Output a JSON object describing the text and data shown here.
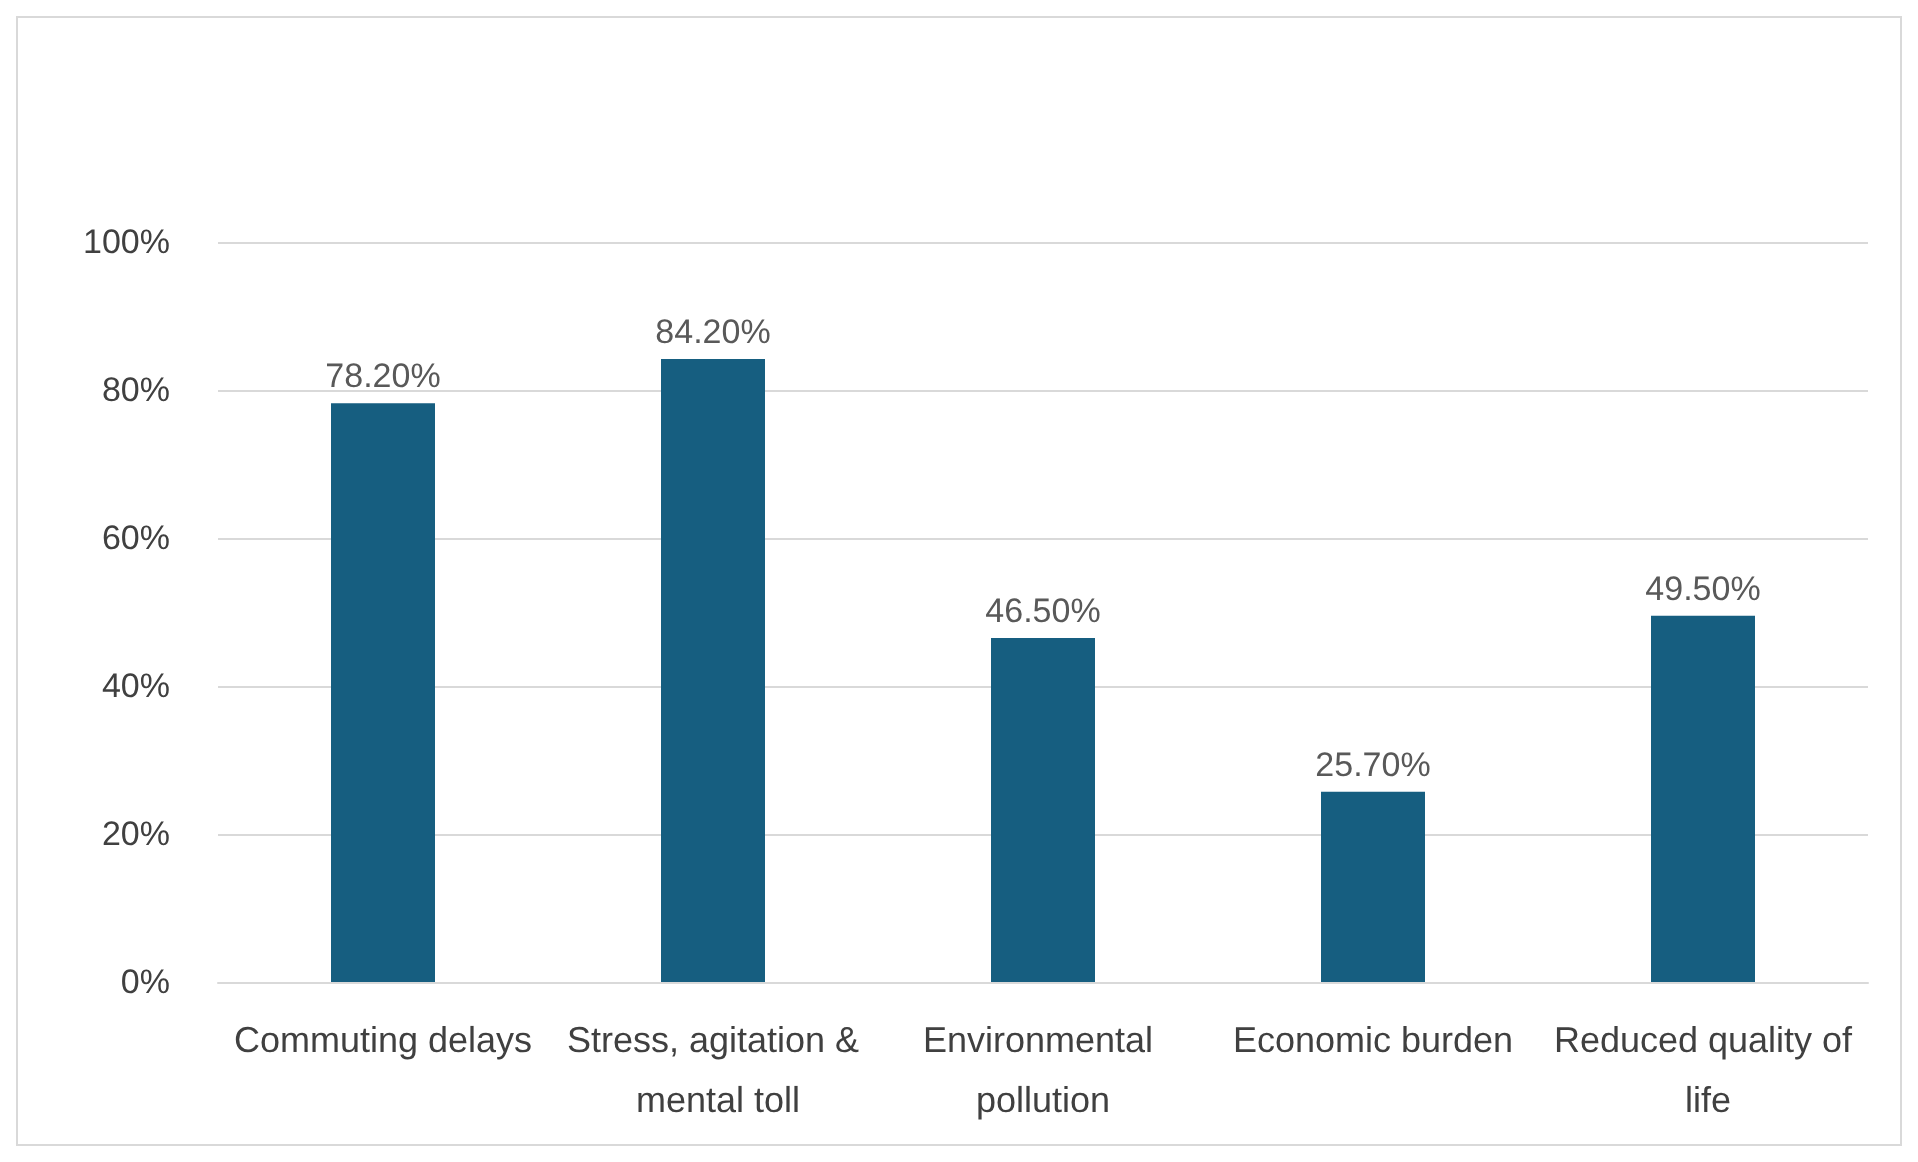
{
  "chart_data": {
    "type": "bar",
    "categories": [
      "Commuting delays",
      "Stress, agitation & mental toll",
      "Environmental pollution",
      "Economic burden",
      "Reduced quality of life"
    ],
    "values": [
      78.2,
      84.2,
      46.5,
      25.7,
      49.5
    ],
    "value_labels": [
      "78.20%",
      "84.20%",
      "46.50%",
      "25.70%",
      "49.50%"
    ],
    "color": "#165e80",
    "ylim": [
      0,
      100
    ],
    "yticks": [
      {
        "value": 0,
        "label": "0%"
      },
      {
        "value": 20,
        "label": "20%"
      },
      {
        "value": 40,
        "label": "40%"
      },
      {
        "value": 60,
        "label": "60%"
      },
      {
        "value": 80,
        "label": "80%"
      },
      {
        "value": 100,
        "label": "100%"
      }
    ],
    "grid": "y"
  }
}
